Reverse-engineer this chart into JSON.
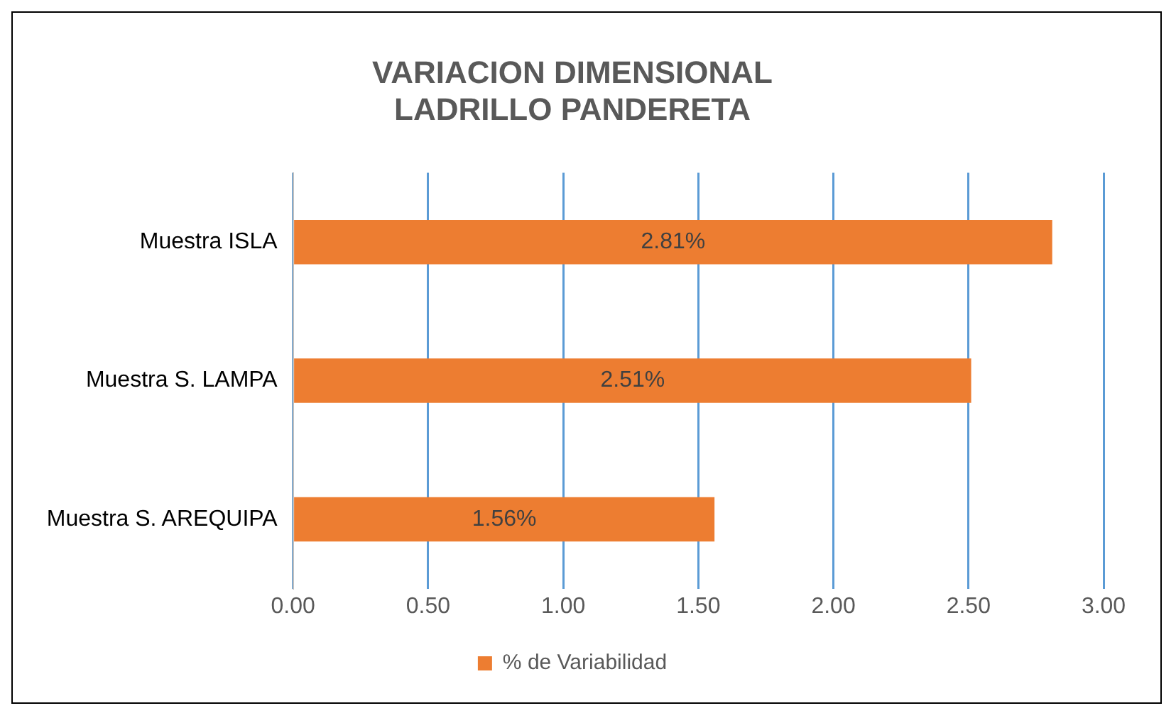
{
  "chart_data": {
    "type": "bar",
    "orientation": "horizontal",
    "title": "VARIACION DIMENSIONAL\nLADRILLO PANDERETA",
    "categories": [
      "Muestra ISLA",
      "Muestra S. LAMPA",
      "Muestra S. AREQUIPA"
    ],
    "series": [
      {
        "name": "% de Variabilidad",
        "color": "#ed7d31",
        "values": [
          2.81,
          2.51,
          1.56
        ],
        "value_labels": [
          "2.81%",
          "2.51%",
          "1.56%"
        ]
      }
    ],
    "xlim": [
      0,
      3
    ],
    "xticks": [
      {
        "value": 0,
        "label": "0.00"
      },
      {
        "value": 0.5,
        "label": "0.50"
      },
      {
        "value": 1,
        "label": "1.00"
      },
      {
        "value": 1.5,
        "label": "1.50"
      },
      {
        "value": 2,
        "label": "2.00"
      },
      {
        "value": 2.5,
        "label": "2.50"
      },
      {
        "value": 3,
        "label": "3.00"
      }
    ],
    "grid": "x",
    "legend": "bottom"
  }
}
